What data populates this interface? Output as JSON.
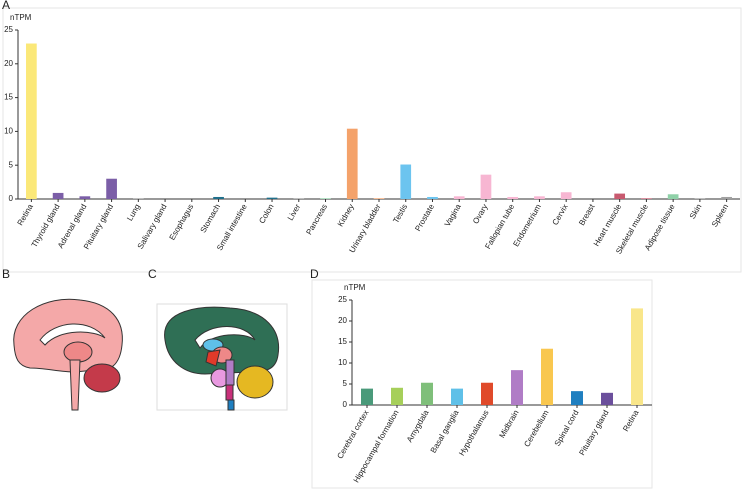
{
  "panel_labels": [
    "A",
    "B",
    "C",
    "D"
  ],
  "chart_data": [
    {
      "type": "bar",
      "ylabel": "nTPM",
      "categories": [
        "Retina",
        "Thyroid gland",
        "Adrenal gland",
        "Pituitary gland",
        "Lung",
        "Salivary gland",
        "Esophagus",
        "Stomach",
        "Small intestine",
        "Colon",
        "Liver",
        "Pancreas",
        "Kidney",
        "Urinary bladder",
        "Testis",
        "Prostate",
        "Vagina",
        "Ovary",
        "Fallopian tube",
        "Endometrium",
        "Cervix",
        "Breast",
        "Heart muscle",
        "Skeletal muscle",
        "Adipose tissue",
        "Skin",
        "Spleen"
      ],
      "values": [
        23,
        0.9,
        0.4,
        3,
        0.1,
        0,
        0,
        0.3,
        0,
        0.2,
        0.1,
        0.1,
        10.4,
        0.1,
        5.1,
        0.3,
        0.4,
        3.6,
        0.3,
        0.4,
        1.0,
        0,
        0.8,
        0.1,
        0.7,
        0.1,
        0.3
      ],
      "colors": [
        "#fbe878",
        "#7b5ea7",
        "#7b5ea7",
        "#7b5ea7",
        "#a0a0a0",
        "#a0a0a0",
        "#a0a0a0",
        "#1f6f8b",
        "#1f6f8b",
        "#1f6f8b",
        "#a0a0a0",
        "#8fd1a8",
        "#f4a26a",
        "#f4a26a",
        "#6cc4ef",
        "#6cc4ef",
        "#f7b6d2",
        "#f7b6d2",
        "#f7b6d2",
        "#f7b6d2",
        "#f7b6d2",
        "#f7b6d2",
        "#c85a6f",
        "#c85a6f",
        "#8fd1a8",
        "#a0a0a0",
        "#a0a0a0"
      ],
      "ylim": [
        0,
        25
      ],
      "yticks": [
        0,
        5,
        10,
        15,
        20,
        25
      ]
    },
    {
      "type": "bar",
      "ylabel": "nTPM",
      "categories": [
        "Cerebral cortex",
        "Hippocampal formation",
        "Amygdala",
        "Basal ganglia",
        "Hypothalamus",
        "Midbrain",
        "Cerebellum",
        "Spinal cord",
        "Pituitary gland",
        "Retina"
      ],
      "values": [
        3.9,
        4.1,
        5.3,
        3.9,
        5.3,
        8.3,
        13.4,
        3.3,
        2.9,
        23
      ],
      "colors": [
        "#4a9a7a",
        "#a6cf5a",
        "#7fbf7a",
        "#5fc0e8",
        "#e04a2a",
        "#b07cc6",
        "#f9c74f",
        "#1f7fc0",
        "#6b4f9c",
        "#f9e68a"
      ],
      "ylim": [
        0,
        25
      ],
      "yticks": [
        0,
        5,
        10,
        15,
        20,
        25
      ]
    }
  ]
}
